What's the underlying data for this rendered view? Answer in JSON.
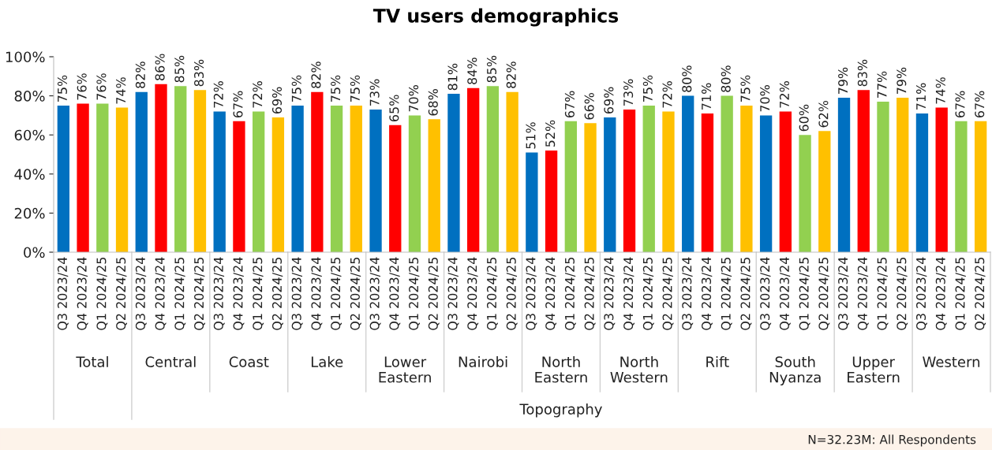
{
  "chart_data": {
    "type": "bar",
    "title": "TV users demographics",
    "categories": [
      "Q3 2023/24",
      "Q4 2023/24",
      "Q1 2024/25",
      "Q2 2024/25",
      "Q3 2023/24",
      "Q4 2023/24",
      "Q1 2024/25",
      "Q2 2024/25",
      "Q3 2023/24",
      "Q4 2023/24",
      "Q1 2024/25",
      "Q2 2024/25",
      "Q3 2023/24",
      "Q4 2023/24",
      "Q1 2024/25",
      "Q2 2024/25",
      "Q3 2023/24",
      "Q4 2023/24",
      "Q1 2024/25",
      "Q2 2024/25",
      "Q3 2023/24",
      "Q4 2023/24",
      "Q1 2024/25",
      "Q2 2024/25",
      "Q3 2023/24",
      "Q4 2023/24",
      "Q1 2024/25",
      "Q2 2024/25",
      "Q3 2023/24",
      "Q4 2023/24",
      "Q1 2024/25",
      "Q2 2024/25",
      "Q3 2023/24",
      "Q4 2023/24",
      "Q1 2024/25",
      "Q2 2024/25",
      "Q3 2023/24",
      "Q4 2023/24",
      "Q1 2024/25",
      "Q2 2024/25",
      "Q3 2023/24",
      "Q4 2023/24",
      "Q1 2024/25",
      "Q2 2024/25",
      "Q3 2023/24",
      "Q4 2023/24",
      "Q1 2024/25",
      "Q2 2024/25"
    ],
    "values": [
      75,
      76,
      76,
      74,
      82,
      86,
      85,
      83,
      72,
      67,
      72,
      69,
      75,
      82,
      75,
      75,
      73,
      65,
      70,
      68,
      81,
      84,
      85,
      82,
      51,
      52,
      67,
      66,
      69,
      73,
      75,
      72,
      80,
      71,
      80,
      75,
      70,
      72,
      60,
      62,
      79,
      83,
      77,
      79,
      71,
      74,
      67,
      67
    ],
    "colors": [
      "#0070c0",
      "#ff0000",
      "#92d050",
      "#ffc000",
      "#0070c0",
      "#ff0000",
      "#92d050",
      "#ffc000",
      "#0070c0",
      "#ff0000",
      "#92d050",
      "#ffc000",
      "#0070c0",
      "#ff0000",
      "#92d050",
      "#ffc000",
      "#0070c0",
      "#ff0000",
      "#92d050",
      "#ffc000",
      "#0070c0",
      "#ff0000",
      "#92d050",
      "#ffc000",
      "#0070c0",
      "#ff0000",
      "#92d050",
      "#ffc000",
      "#0070c0",
      "#ff0000",
      "#92d050",
      "#ffc000",
      "#0070c0",
      "#ff0000",
      "#92d050",
      "#ffc000",
      "#0070c0",
      "#ff0000",
      "#92d050",
      "#ffc000",
      "#0070c0",
      "#ff0000",
      "#92d050",
      "#ffc000",
      "#0070c0",
      "#ff0000",
      "#92d050",
      "#ffc000"
    ],
    "value_labels": [
      "75%",
      "76%",
      "76%",
      "74%",
      "82%",
      "86%",
      "85%",
      "83%",
      "72%",
      "67%",
      "72%",
      "69%",
      "75%",
      "82%",
      "75%",
      "75%",
      "73%",
      "65%",
      "70%",
      "68%",
      "81%",
      "84%",
      "85%",
      "82%",
      "51%",
      "52%",
      "67%",
      "66%",
      "69%",
      "73%",
      "75%",
      "72%",
      "80%",
      "71%",
      "80%",
      "75%",
      "70%",
      "72%",
      "60%",
      "62%",
      "79%",
      "83%",
      "77%",
      "79%",
      "71%",
      "74%",
      "67%",
      "67%"
    ],
    "ylim": [
      0,
      100
    ],
    "yticks": [
      {
        "value": 0,
        "label": "0%"
      },
      {
        "value": 20,
        "label": "20%"
      },
      {
        "value": 40,
        "label": "40%"
      },
      {
        "value": 60,
        "label": "60%"
      },
      {
        "value": 80,
        "label": "80%"
      },
      {
        "value": 100,
        "label": "100%"
      }
    ],
    "grid": false,
    "legend": false,
    "annotations": [
      "Total",
      "Central",
      "Coast",
      "Lake",
      "Lower\nEastern",
      "Nairobi",
      "North\nEastern",
      "North\nWestern",
      "Rift",
      "South\nNyanza",
      "Upper\nEastern",
      "Western",
      "Topography",
      "N=32.23M: All Respondents"
    ]
  }
}
